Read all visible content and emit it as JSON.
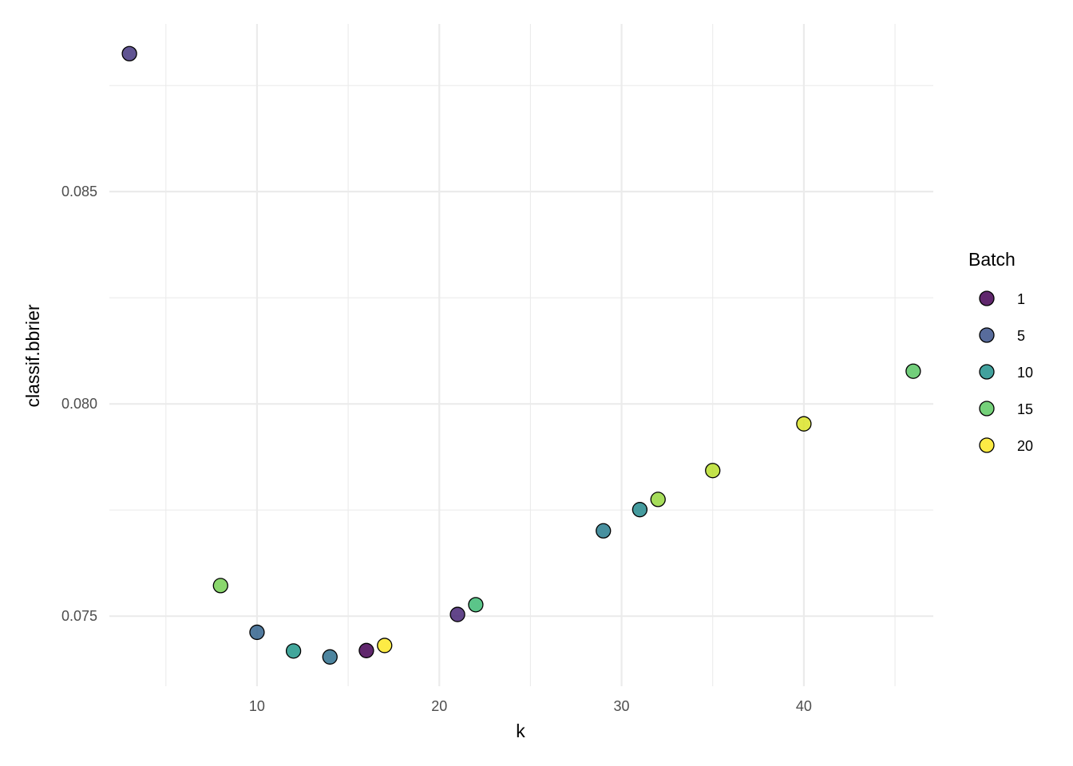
{
  "chart_data": {
    "type": "scatter",
    "xlabel": "k",
    "ylabel": "classif.bbrier",
    "xlim": [
      1.9,
      47.1
    ],
    "ylim": [
      0.07335,
      0.08895
    ],
    "x_ticks": [
      10,
      20,
      30,
      40
    ],
    "x_minor_ticks": [
      5,
      15,
      25,
      35,
      45
    ],
    "y_ticks": [
      0.075,
      0.08,
      0.085
    ],
    "y_tick_labels": [
      "0.075",
      "0.080",
      "0.085"
    ],
    "y_minor_ticks": [
      0.0775,
      0.0825,
      0.0875
    ],
    "grid": true,
    "legend": {
      "title": "Batch",
      "placement": "right",
      "entries": [
        {
          "label": "1",
          "color": "#440154"
        },
        {
          "label": "5",
          "color": "#3b528b"
        },
        {
          "label": "10",
          "color": "#21908c"
        },
        {
          "label": "15",
          "color": "#5dc963"
        },
        {
          "label": "20",
          "color": "#fde725"
        }
      ]
    },
    "color_scale": {
      "min": 1,
      "max": 20,
      "palette": "viridis"
    },
    "points": [
      {
        "k": 3,
        "value": 0.08825,
        "batch": 4
      },
      {
        "k": 8,
        "value": 0.07572,
        "batch": 16
      },
      {
        "k": 10,
        "value": 0.07462,
        "batch": 7
      },
      {
        "k": 12,
        "value": 0.07418,
        "batch": 11
      },
      {
        "k": 14,
        "value": 0.07404,
        "batch": 8
      },
      {
        "k": 16,
        "value": 0.07419,
        "batch": 1
      },
      {
        "k": 17,
        "value": 0.07431,
        "batch": 20
      },
      {
        "k": 21,
        "value": 0.07504,
        "batch": 3
      },
      {
        "k": 22,
        "value": 0.07527,
        "batch": 14
      },
      {
        "k": 29,
        "value": 0.07701,
        "batch": 9
      },
      {
        "k": 31,
        "value": 0.07751,
        "batch": 10
      },
      {
        "k": 32,
        "value": 0.07775,
        "batch": 17
      },
      {
        "k": 35,
        "value": 0.07843,
        "batch": 18
      },
      {
        "k": 40,
        "value": 0.07953,
        "batch": 19
      },
      {
        "k": 46,
        "value": 0.08077,
        "batch": 15
      }
    ]
  }
}
